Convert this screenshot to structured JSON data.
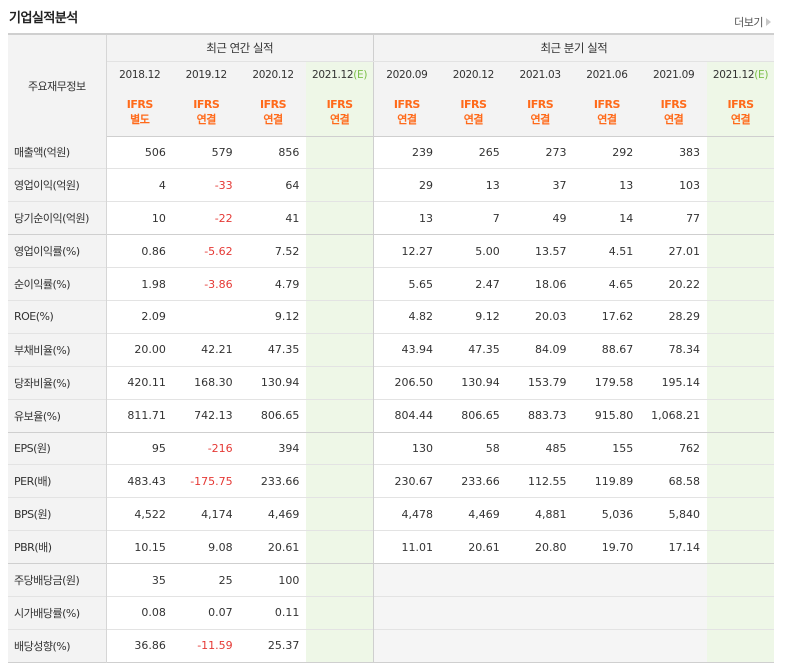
{
  "header": {
    "title": "기업실적분석",
    "more_label": "더보기"
  },
  "table": {
    "row_label_header": "주요재무정보",
    "group_annual": "최근 연간 실적",
    "group_quarter": "최근 분기 실적",
    "columns": [
      {
        "date": "2018.12",
        "estimate": false,
        "ifrs": "IFRS",
        "basis": "별도"
      },
      {
        "date": "2019.12",
        "estimate": false,
        "ifrs": "IFRS",
        "basis": "연결"
      },
      {
        "date": "2020.12",
        "estimate": false,
        "ifrs": "IFRS",
        "basis": "연결"
      },
      {
        "date": "2021.12",
        "estimate": true,
        "estimate_mark": "(E)",
        "ifrs": "IFRS",
        "basis": "연결"
      },
      {
        "date": "2020.09",
        "estimate": false,
        "ifrs": "IFRS",
        "basis": "연결"
      },
      {
        "date": "2020.12",
        "estimate": false,
        "ifrs": "IFRS",
        "basis": "연결"
      },
      {
        "date": "2021.03",
        "estimate": false,
        "ifrs": "IFRS",
        "basis": "연결"
      },
      {
        "date": "2021.06",
        "estimate": false,
        "ifrs": "IFRS",
        "basis": "연결"
      },
      {
        "date": "2021.09",
        "estimate": false,
        "ifrs": "IFRS",
        "basis": "연결"
      },
      {
        "date": "2021.12",
        "estimate": true,
        "estimate_mark": "(E)",
        "ifrs": "IFRS",
        "basis": "연결"
      }
    ],
    "rows": [
      {
        "label": "매출액(억원)",
        "values": [
          "506",
          "579",
          "856",
          "",
          "239",
          "265",
          "273",
          "292",
          "383",
          ""
        ]
      },
      {
        "label": "영업이익(억원)",
        "values": [
          "4",
          "-33",
          "64",
          "",
          "29",
          "13",
          "37",
          "13",
          "103",
          ""
        ]
      },
      {
        "label": "당기순이익(억원)",
        "values": [
          "10",
          "-22",
          "41",
          "",
          "13",
          "7",
          "49",
          "14",
          "77",
          ""
        ]
      },
      {
        "label": "영업이익률(%)",
        "values": [
          "0.86",
          "-5.62",
          "7.52",
          "",
          "12.27",
          "5.00",
          "13.57",
          "4.51",
          "27.01",
          ""
        ]
      },
      {
        "label": "순이익률(%)",
        "values": [
          "1.98",
          "-3.86",
          "4.79",
          "",
          "5.65",
          "2.47",
          "18.06",
          "4.65",
          "20.22",
          ""
        ]
      },
      {
        "label": "ROE(%)",
        "values": [
          "2.09",
          "",
          "9.12",
          "",
          "4.82",
          "9.12",
          "20.03",
          "17.62",
          "28.29",
          ""
        ]
      },
      {
        "label": "부채비율(%)",
        "values": [
          "20.00",
          "42.21",
          "47.35",
          "",
          "43.94",
          "47.35",
          "84.09",
          "88.67",
          "78.34",
          ""
        ]
      },
      {
        "label": "당좌비율(%)",
        "values": [
          "420.11",
          "168.30",
          "130.94",
          "",
          "206.50",
          "130.94",
          "153.79",
          "179.58",
          "195.14",
          ""
        ]
      },
      {
        "label": "유보율(%)",
        "values": [
          "811.71",
          "742.13",
          "806.65",
          "",
          "804.44",
          "806.65",
          "883.73",
          "915.80",
          "1,068.21",
          ""
        ]
      },
      {
        "label": "EPS(원)",
        "values": [
          "95",
          "-216",
          "394",
          "",
          "130",
          "58",
          "485",
          "155",
          "762",
          ""
        ]
      },
      {
        "label": "PER(배)",
        "values": [
          "483.43",
          "-175.75",
          "233.66",
          "",
          "230.67",
          "233.66",
          "112.55",
          "119.89",
          "68.58",
          ""
        ]
      },
      {
        "label": "BPS(원)",
        "values": [
          "4,522",
          "4,174",
          "4,469",
          "",
          "4,478",
          "4,469",
          "4,881",
          "5,036",
          "5,840",
          ""
        ]
      },
      {
        "label": "PBR(배)",
        "values": [
          "10.15",
          "9.08",
          "20.61",
          "",
          "11.01",
          "20.61",
          "20.80",
          "19.70",
          "17.14",
          ""
        ]
      },
      {
        "label": "주당배당금(원)",
        "values": [
          "35",
          "25",
          "100",
          "",
          "",
          "",
          "",
          "",
          "",
          ""
        ]
      },
      {
        "label": "시가배당률(%)",
        "values": [
          "0.08",
          "0.07",
          "0.11",
          "",
          "",
          "",
          "",
          "",
          "",
          ""
        ]
      },
      {
        "label": "배당성향(%)",
        "values": [
          "36.86",
          "-11.59",
          "25.37",
          "",
          "",
          "",
          "",
          "",
          "",
          ""
        ]
      }
    ],
    "section_breaks_before_row": [
      3,
      9,
      13
    ],
    "colors": {
      "negative": "#e53935",
      "ifrs": "#ff6a1a",
      "estimate_bg": "#eef7e7",
      "estimate_mark": "#7cbf4a",
      "header_bg": "#f3f3f3"
    }
  }
}
